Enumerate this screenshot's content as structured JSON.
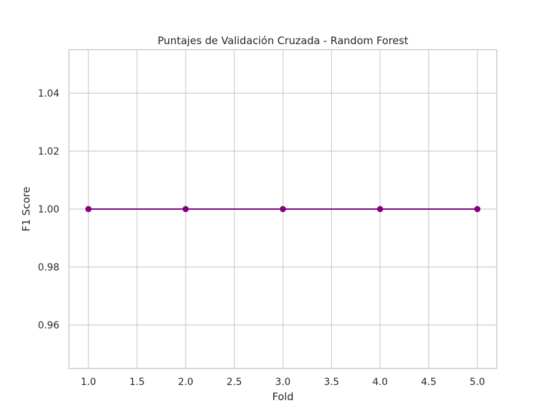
{
  "chart_data": {
    "type": "line",
    "title": "Puntajes de Validación Cruzada - Random Forest",
    "xlabel": "Fold",
    "ylabel": "F1 Score",
    "x": [
      1,
      2,
      3,
      4,
      5
    ],
    "series": [
      {
        "values": [
          1.0,
          1.0,
          1.0,
          1.0,
          1.0
        ],
        "color": "#800080"
      }
    ],
    "xlim": [
      0.8,
      5.2
    ],
    "ylim": [
      0.945,
      1.055
    ],
    "xticks": [
      "1.0",
      "1.5",
      "2.0",
      "2.5",
      "3.0",
      "3.5",
      "4.0",
      "4.5",
      "5.0"
    ],
    "yticks": [
      "0.96",
      "0.98",
      "1.00",
      "1.02",
      "1.04"
    ],
    "grid": true,
    "legend": "none",
    "marker": "circle"
  }
}
